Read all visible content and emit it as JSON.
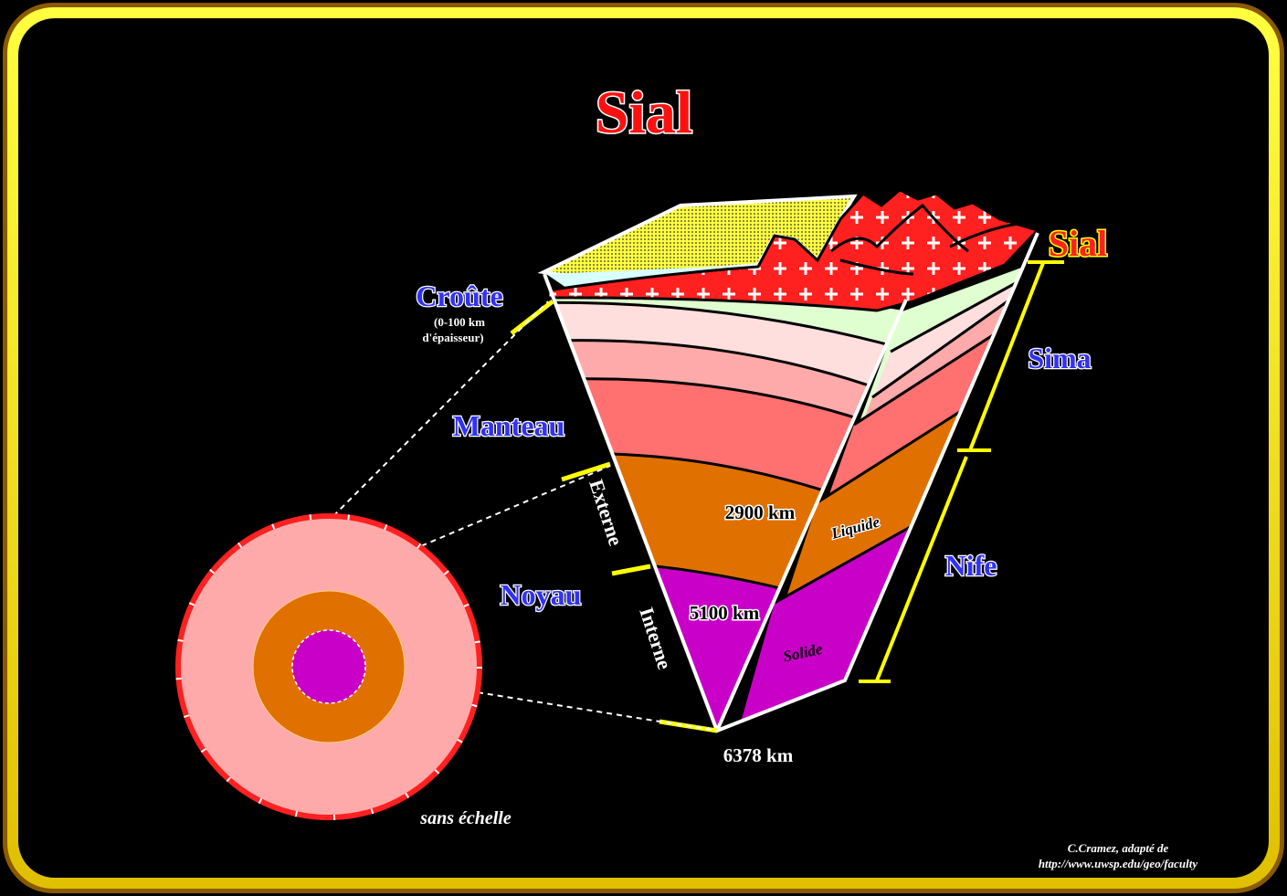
{
  "title": "Sial",
  "labels": {
    "croute": "Croûte",
    "croute_note_1": "(0-100 km",
    "croute_note_2": "d'épaisseur)",
    "manteau": "Manteau",
    "noyau": "Noyau",
    "externe": "Externe",
    "interne": "Interne",
    "depth_2900": "2900 km",
    "depth_5100": "5100 km",
    "depth_6378": "6378 km",
    "liquide": "Liquide",
    "solide": "Solide",
    "sial": "Sial",
    "sima": "Sima",
    "nife": "Nife",
    "scale_note": "sans échelle"
  },
  "credit": {
    "line1": "C.Cramez, adapté de",
    "line2": "http://www.uwsp.edu/geo/faculty"
  },
  "colors": {
    "frame": "#ffe800",
    "crust": "#ff2020",
    "upper_mantle": "#e0ffd0",
    "mantle_1": "#ffdede",
    "mantle_2": "#ffaaaa",
    "mantle_3": "#ff7070",
    "outer_core": "#e07000",
    "inner_core": "#c800c8",
    "label_blue": "#3030ff"
  }
}
